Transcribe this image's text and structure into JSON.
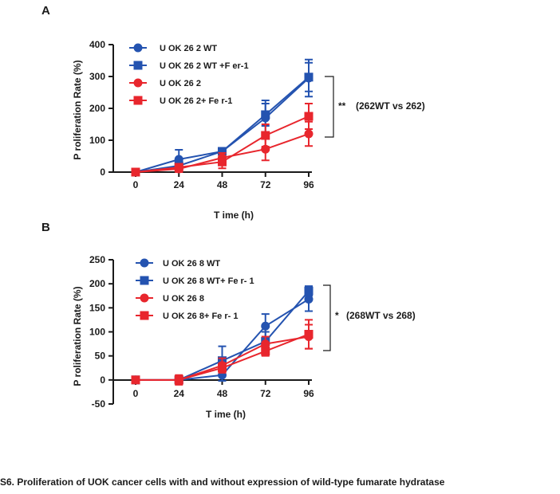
{
  "caption": "S6. Proliferation of UOK cancer cells with and without expression of wild-type fumarate hydratase",
  "colors": {
    "blue": "#2453b0",
    "red": "#e8262d",
    "axis": "#1a1a1a"
  },
  "chart_data": [
    {
      "type": "line",
      "panel": "A",
      "xlabel": "T ime  (h)",
      "ylabel": "P roliferation Rate (%)",
      "x": [
        0,
        24,
        48,
        72,
        96
      ],
      "x_ticks": [
        "0",
        "24",
        "48",
        "72",
        "96"
      ],
      "ylim": [
        0,
        400
      ],
      "y_ticks": [
        0,
        100,
        200,
        300,
        400
      ],
      "y_tick_labels": [
        "0",
        "100",
        "200",
        "300",
        "400"
      ],
      "legend_position": "top-left",
      "series": [
        {
          "name": "U OK 26 2  WT",
          "marker": "circle",
          "color": "#2453b0",
          "values": [
            0,
            40,
            65,
            170,
            295
          ],
          "errors": [
            0,
            30,
            10,
            55,
            58
          ]
        },
        {
          "name": "U OK 26 2  WT +F er-1",
          "marker": "square",
          "color": "#2453b0",
          "values": [
            0,
            20,
            65,
            180,
            298
          ],
          "errors": [
            0,
            15,
            10,
            35,
            45
          ]
        },
        {
          "name": "U OK 26 2",
          "marker": "circle",
          "color": "#e8262d",
          "values": [
            0,
            10,
            45,
            72,
            120
          ],
          "errors": [
            0,
            10,
            15,
            35,
            38
          ]
        },
        {
          "name": "U OK 26 2+ Fe r-1",
          "marker": "square",
          "color": "#e8262d",
          "values": [
            0,
            15,
            32,
            115,
            175
          ],
          "errors": [
            0,
            10,
            20,
            35,
            40
          ]
        }
      ],
      "annotation": {
        "stars": "**",
        "text": "(262WT  vs 262)"
      }
    },
    {
      "type": "line",
      "panel": "B",
      "xlabel": "T ime  (h)",
      "ylabel": "P roliferation Rate (%)",
      "x": [
        0,
        24,
        48,
        72,
        96
      ],
      "x_ticks": [
        "0",
        "24",
        "48",
        "72",
        "96"
      ],
      "ylim": [
        -50,
        250
      ],
      "y_ticks": [
        -50,
        0,
        50,
        100,
        150,
        200,
        250
      ],
      "y_tick_labels": [
        "-50",
        "0",
        "50",
        "100",
        "150",
        "200",
        "250"
      ],
      "legend_position": "top-left",
      "series": [
        {
          "name": "U OK 26 8  WT",
          "marker": "circle",
          "color": "#2453b0",
          "values": [
            0,
            0,
            10,
            112,
            168
          ],
          "errors": [
            0,
            5,
            12,
            25,
            25
          ]
        },
        {
          "name": "U OK 26 8 WT+ Fe r- 1",
          "marker": "square",
          "color": "#2453b0",
          "values": [
            0,
            0,
            40,
            80,
            185
          ],
          "errors": [
            0,
            8,
            30,
            20,
            10
          ]
        },
        {
          "name": "U OK 26 8",
          "marker": "circle",
          "color": "#e8262d",
          "values": [
            0,
            0,
            30,
            75,
            90
          ],
          "errors": [
            0,
            10,
            15,
            15,
            25
          ]
        },
        {
          "name": "U OK 26 8+ Fe r- 1",
          "marker": "square",
          "color": "#e8262d",
          "values": [
            0,
            0,
            25,
            60,
            95
          ],
          "errors": [
            0,
            8,
            10,
            10,
            30
          ]
        }
      ],
      "annotation": {
        "stars": "*",
        "text": "(268WT  vs 268)"
      }
    }
  ]
}
